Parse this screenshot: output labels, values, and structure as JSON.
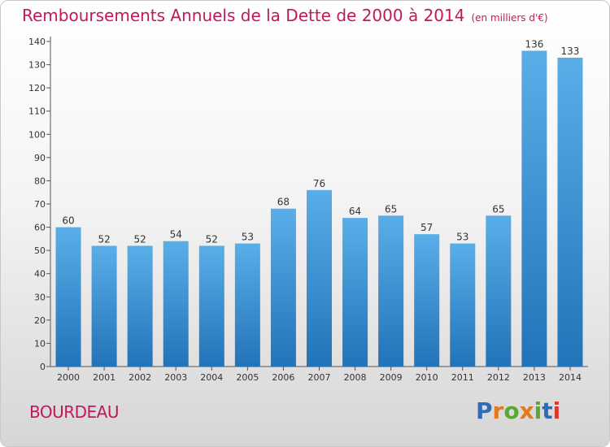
{
  "header": {
    "title": "Remboursements Annuels de la Dette de 2000 à 2014",
    "unit": "(en milliers d'€)"
  },
  "footer": {
    "place": "BOURDEAU",
    "logo_text": "Proxiti"
  },
  "colors": {
    "title": "#c2185b",
    "bar_top": "#5aaee8",
    "bar_bottom": "#2273b8",
    "logo": [
      "#2d6db5",
      "#e07b1f",
      "#5aa832",
      "#e07b1f",
      "#5aa832",
      "#2d6db5",
      "#d93a2b"
    ]
  },
  "chart_data": {
    "type": "bar",
    "title": "Remboursements Annuels de la Dette de 2000 à 2014",
    "categories": [
      "2000",
      "2001",
      "2002",
      "2003",
      "2004",
      "2005",
      "2006",
      "2007",
      "2008",
      "2009",
      "2010",
      "2011",
      "2012",
      "2013",
      "2014"
    ],
    "values": [
      60,
      52,
      52,
      54,
      52,
      53,
      68,
      76,
      64,
      65,
      57,
      53,
      65,
      136,
      133
    ],
    "ylim": [
      0,
      140
    ],
    "yticks": [
      0,
      10,
      20,
      30,
      40,
      50,
      60,
      70,
      80,
      90,
      100,
      110,
      120,
      130,
      140
    ],
    "grid": false,
    "data_labels": true
  }
}
